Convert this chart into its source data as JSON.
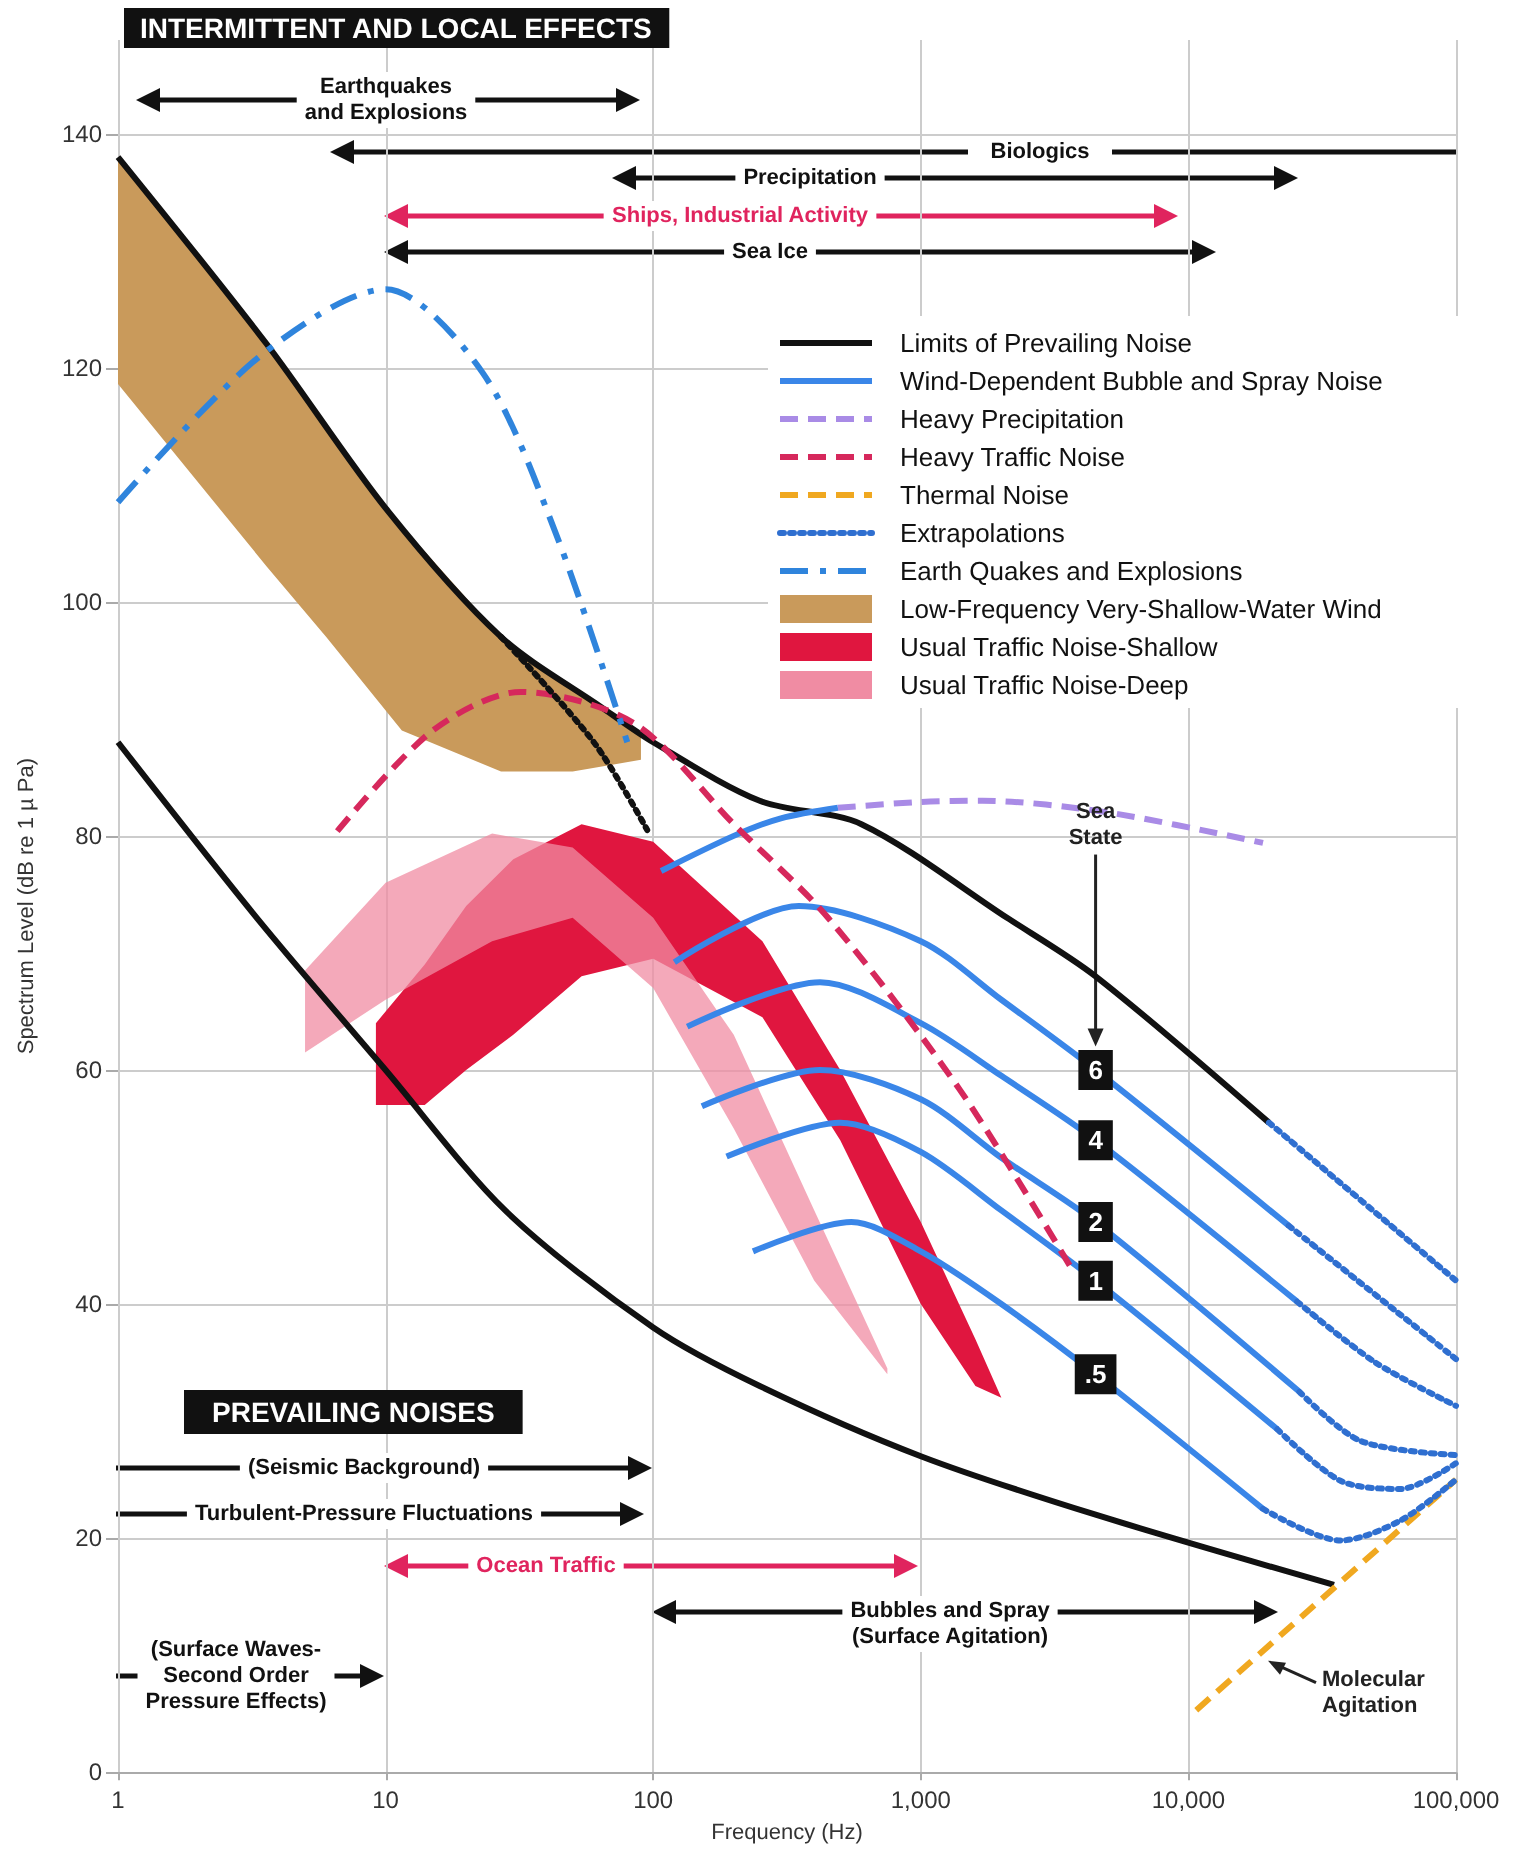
{
  "chart_data": {
    "type": "line",
    "title": "INTERMITTENT AND LOCAL EFFECTS",
    "xlabel": "Frequency (Hz)",
    "ylabel": "Spectrum Level (dB re 1 µ Pa)",
    "log": "x",
    "grid": true,
    "legend": "top right",
    "xlim": [
      1,
      100000
    ],
    "ylim": [
      0,
      148
    ],
    "xticks": [
      1,
      10,
      100,
      {
        "value": 1000,
        "label": "1,000"
      },
      {
        "value": 10000,
        "label": "10,000"
      },
      {
        "value": 100000,
        "label": "100,000"
      }
    ],
    "yticks": [
      0,
      20,
      40,
      60,
      80,
      100,
      120,
      140
    ],
    "series": [
      {
        "name": "Limits of Prevailing Noise",
        "type": "line",
        "color": "#111111",
        "line_style": "solid",
        "x": [
          1,
          3.6,
          10,
          27,
          64,
          100,
          250,
          600,
          2100,
          4500,
          20000
        ],
        "values": [
          138,
          122,
          108,
          97,
          91,
          88,
          83,
          81,
          73,
          68,
          55.5
        ]
      },
      {
        "type": "line",
        "color": "#111111",
        "line_style": "solid",
        "x": [
          1,
          3.3,
          10,
          28,
          100,
          250,
          1000,
          4500,
          35000
        ],
        "values": [
          88,
          73,
          60,
          48,
          38,
          33,
          27,
          22,
          16
        ]
      },
      {
        "name": "Wind-Dependent Bubble and Spray Noise",
        "type": "line",
        "color": "#3a86e8",
        "line_style": "solid",
        "x": [
          107,
          200,
          300,
          490
        ],
        "values": [
          77,
          80,
          81.5,
          82.4
        ]
      },
      {
        "name": "6",
        "type": "line",
        "color": "#3a86e8",
        "line_style": "solid",
        "x": [
          120,
          350,
          1000,
          2000,
          4500,
          23700
        ],
        "values": [
          69.2,
          74,
          71,
          66,
          60,
          46.7
        ]
      },
      {
        "name": "4",
        "type": "line",
        "color": "#3a86e8",
        "line_style": "solid",
        "x": [
          134,
          420,
          1000,
          2000,
          4500,
          25500
        ],
        "values": [
          63.7,
          67.5,
          64,
          59.5,
          54,
          40.2
        ]
      },
      {
        "name": "2",
        "type": "line",
        "color": "#3a86e8",
        "line_style": "solid",
        "x": [
          152,
          420,
          1000,
          2000,
          4500,
          26000
        ],
        "values": [
          56.9,
          60,
          57.5,
          52.5,
          47,
          32.5
        ]
      },
      {
        "name": "1",
        "type": "line",
        "color": "#3a86e8",
        "line_style": "solid",
        "x": [
          188,
          500,
          1000,
          2000,
          4500,
          21500
        ],
        "values": [
          52.6,
          55.5,
          53,
          48,
          42,
          29.3
        ]
      },
      {
        "name": ".5",
        "type": "line",
        "color": "#3a86e8",
        "line_style": "solid",
        "x": [
          236,
          550,
          1000,
          2000,
          4500,
          19000
        ],
        "values": [
          44.5,
          47,
          44.5,
          40,
          34,
          22.5
        ]
      },
      {
        "name": "Heavy Precipitation",
        "type": "line",
        "color": "#a98be6",
        "line_style": "dashed",
        "x": [
          490,
          1000,
          1700,
          5000,
          19000
        ],
        "values": [
          82.4,
          82.9,
          83,
          82,
          79.4
        ]
      },
      {
        "name": "Heavy Traffic Noise",
        "type": "line",
        "color": "#d6285c",
        "line_style": "dashed",
        "x": [
          6.6,
          15,
          32,
          85,
          200,
          450,
          1400,
          3600
        ],
        "values": [
          80.4,
          89,
          92.3,
          89.6,
          81,
          73,
          58.3,
          43.3
        ]
      },
      {
        "name": "Thermal Noise",
        "type": "line",
        "color": "#f0a820",
        "line_style": "dashed",
        "x": [
          10700,
          100000
        ],
        "values": [
          5.3,
          25
        ]
      },
      {
        "name": "Extrapolations",
        "type": "line",
        "color": "#2f6fd0",
        "line_style": "dotted",
        "x": [
          23700,
          100000
        ],
        "values": [
          46.7,
          35.3
        ]
      },
      {
        "type": "line",
        "color": "#2f6fd0",
        "line_style": "dotted",
        "x": [
          25500,
          50000,
          100000
        ],
        "values": [
          40.2,
          35,
          31.3
        ]
      },
      {
        "type": "line",
        "color": "#2f6fd0",
        "line_style": "dotted",
        "x": [
          26000,
          44000,
          100000
        ],
        "values": [
          32.5,
          28.3,
          27.1
        ]
      },
      {
        "type": "line",
        "color": "#2f6fd0",
        "line_style": "dotted",
        "x": [
          21500,
          37000,
          62000,
          100000
        ],
        "values": [
          29.3,
          24.9,
          24.2,
          26.4
        ]
      },
      {
        "type": "line",
        "color": "#2f6fd0",
        "line_style": "dotted",
        "x": [
          19000,
          37000,
          62000,
          100000
        ],
        "values": [
          22.5,
          19.8,
          21.5,
          25
        ]
      },
      {
        "type": "line",
        "color": "#2f6fd0",
        "line_style": "dotted",
        "x": [
          20000,
          100000
        ],
        "values": [
          55.5,
          42
        ]
      },
      {
        "type": "line",
        "color": "#111111",
        "line_style": "dotted",
        "x": [
          27,
          60,
          95
        ],
        "values": [
          97,
          88,
          80.5
        ]
      },
      {
        "name": "Earth Quakes and Explosions",
        "type": "line",
        "color": "#2f84dc",
        "line_style": "dashdot",
        "x": [
          1,
          3.4,
          10,
          23,
          43,
          80
        ],
        "values": [
          108.5,
          121,
          126.7,
          119.6,
          106,
          88
        ]
      },
      {
        "name": "Low-Frequency Very-Shallow-Water Wind",
        "type": "line",
        "color": "#c99a5b",
        "x": [
          1,
          3.6,
          6,
          11.5,
          27,
          50,
          90
        ],
        "values": [
          null,
          null,
          null,
          null,
          null,
          null,
          null
        ],
        "upper": [
          138,
          122,
          115,
          106.5,
          97,
          92.5,
          88.5
        ],
        "lower": [
          118.6,
          103,
          97,
          89,
          85.5,
          85.5,
          86.5
        ]
      },
      {
        "name": "Usual Traffic Noise-Shallow",
        "type": "line",
        "color": "#e0163f",
        "x": [
          9.2,
          14,
          20,
          30,
          54,
          100,
          256,
          500,
          1000,
          1600,
          2000
        ],
        "values": [
          null,
          null,
          null,
          null,
          null,
          null,
          null,
          null,
          null,
          null,
          null
        ],
        "upper": [
          64,
          69,
          74,
          78,
          81,
          79.5,
          71,
          60,
          47,
          37,
          32
        ],
        "lower": [
          57,
          57,
          60,
          63,
          68,
          69.5,
          64.5,
          54,
          40,
          33,
          32
        ]
      },
      {
        "name": "Usual Traffic Noise-Deep",
        "type": "line",
        "color": "#f08ca3",
        "x": [
          5,
          10,
          25,
          50,
          100,
          200,
          400,
          750
        ],
        "values": [
          null,
          null,
          null,
          null,
          null,
          null,
          null,
          null
        ],
        "upper": [
          68.5,
          76,
          80.2,
          79,
          73,
          63,
          48,
          34.5
        ],
        "lower": [
          61.5,
          66,
          71,
          73,
          67,
          55,
          42,
          34
        ]
      }
    ],
    "annotations": [
      "PREVAILING NOISES",
      "Earthquakes\nand Explosions",
      "Biologics",
      "Precipitation",
      "Ships, Industrial Activity",
      "Sea Ice",
      "(Seismic Background)",
      "Turbulent-Pressure Fluctuations",
      "Ocean Traffic",
      "Bubbles and Spray\n(Surface Agitation)",
      "(Surface Waves-\nSecond Order\nPressure Effects)",
      {
        "text": "Sea\nState",
        "x": 4500,
        "y": 62
      },
      {
        "text": "Molecular\nAgitation",
        "x": 19500,
        "y": 9.7
      }
    ]
  }
}
